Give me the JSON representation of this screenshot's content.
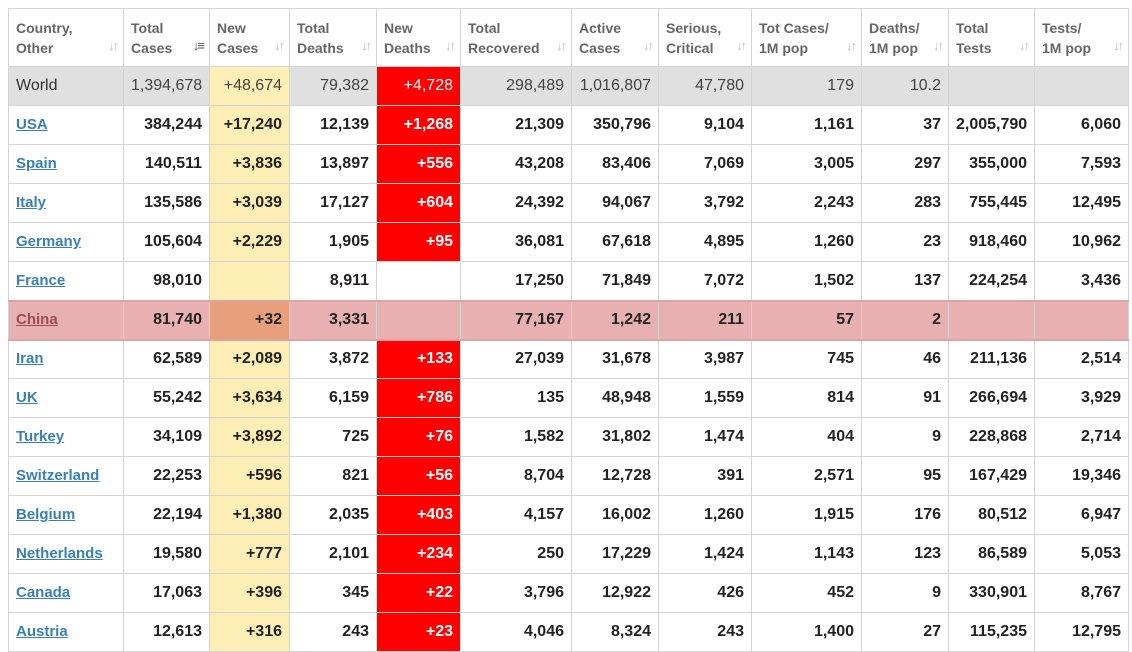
{
  "columns": [
    {
      "line1": "Country,",
      "line2": "Other",
      "sort_active": false
    },
    {
      "line1": "Total",
      "line2": "Cases",
      "sort_active": true
    },
    {
      "line1": "New",
      "line2": "Cases",
      "sort_active": false
    },
    {
      "line1": "Total",
      "line2": "Deaths",
      "sort_active": false
    },
    {
      "line1": "New",
      "line2": "Deaths",
      "sort_active": false
    },
    {
      "line1": "Total",
      "line2": "Recovered",
      "sort_active": false
    },
    {
      "line1": "Active",
      "line2": "Cases",
      "sort_active": false
    },
    {
      "line1": "Serious,",
      "line2": "Critical",
      "sort_active": false
    },
    {
      "line1": "Tot Cases/",
      "line2": "1M pop",
      "sort_active": false
    },
    {
      "line1": "Deaths/",
      "line2": "1M pop",
      "sort_active": false
    },
    {
      "line1": "Total",
      "line2": "Tests",
      "sort_active": false
    },
    {
      "line1": "Tests/",
      "line2": "1M pop",
      "sort_active": false
    }
  ],
  "icons": {
    "sort": "sort-arrows-icon",
    "sort_active": "sort-descending-icon"
  },
  "colors": {
    "new_cases_bg": "#fdeeb5",
    "new_deaths_bg": "#ff0000",
    "world_row_bg": "#e0e0e0",
    "highlight_row_bg": "#e8b0b0",
    "country_link": "#3a7fb8"
  },
  "world": [
    "World",
    "1,394,678",
    "+48,674",
    "79,382",
    "+4,728",
    "298,489",
    "1,016,807",
    "47,780",
    "179",
    "10.2",
    "",
    ""
  ],
  "rows": [
    [
      "USA",
      "384,244",
      "+17,240",
      "12,139",
      "+1,268",
      "21,309",
      "350,796",
      "9,104",
      "1,161",
      "37",
      "2,005,790",
      "6,060"
    ],
    [
      "Spain",
      "140,511",
      "+3,836",
      "13,897",
      "+556",
      "43,208",
      "83,406",
      "7,069",
      "3,005",
      "297",
      "355,000",
      "7,593"
    ],
    [
      "Italy",
      "135,586",
      "+3,039",
      "17,127",
      "+604",
      "24,392",
      "94,067",
      "3,792",
      "2,243",
      "283",
      "755,445",
      "12,495"
    ],
    [
      "Germany",
      "105,604",
      "+2,229",
      "1,905",
      "+95",
      "36,081",
      "67,618",
      "4,895",
      "1,260",
      "23",
      "918,460",
      "10,962"
    ],
    [
      "France",
      "98,010",
      "",
      "8,911",
      "",
      "17,250",
      "71,849",
      "7,072",
      "1,502",
      "137",
      "224,254",
      "3,436"
    ],
    [
      "China",
      "81,740",
      "+32",
      "3,331",
      "",
      "77,167",
      "1,242",
      "211",
      "57",
      "2",
      "",
      ""
    ],
    [
      "Iran",
      "62,589",
      "+2,089",
      "3,872",
      "+133",
      "27,039",
      "31,678",
      "3,987",
      "745",
      "46",
      "211,136",
      "2,514"
    ],
    [
      "UK",
      "55,242",
      "+3,634",
      "6,159",
      "+786",
      "135",
      "48,948",
      "1,559",
      "814",
      "91",
      "266,694",
      "3,929"
    ],
    [
      "Turkey",
      "34,109",
      "+3,892",
      "725",
      "+76",
      "1,582",
      "31,802",
      "1,474",
      "404",
      "9",
      "228,868",
      "2,714"
    ],
    [
      "Switzerland",
      "22,253",
      "+596",
      "821",
      "+56",
      "8,704",
      "12,728",
      "391",
      "2,571",
      "95",
      "167,429",
      "19,346"
    ],
    [
      "Belgium",
      "22,194",
      "+1,380",
      "2,035",
      "+403",
      "4,157",
      "16,002",
      "1,260",
      "1,915",
      "176",
      "80,512",
      "6,947"
    ],
    [
      "Netherlands",
      "19,580",
      "+777",
      "2,101",
      "+234",
      "250",
      "17,229",
      "1,424",
      "1,143",
      "123",
      "86,589",
      "5,053"
    ],
    [
      "Canada",
      "17,063",
      "+396",
      "345",
      "+22",
      "3,796",
      "12,922",
      "426",
      "452",
      "9",
      "330,901",
      "8,767"
    ],
    [
      "Austria",
      "12,613",
      "+316",
      "243",
      "+23",
      "4,046",
      "8,324",
      "243",
      "1,400",
      "27",
      "115,235",
      "12,795"
    ]
  ],
  "highlighted_country": "China"
}
